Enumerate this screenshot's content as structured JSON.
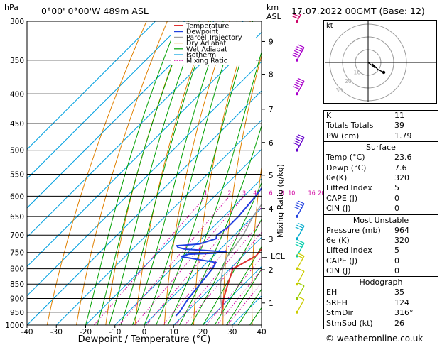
{
  "header": {
    "location": "0°00' 0°00'W 489m ASL",
    "datetime": "17.07.2022 00GMT (Base: 12)",
    "hpa_label": "hPa",
    "km_label": "km",
    "asl_label": "ASL"
  },
  "legend": [
    "Temperature",
    "Dewpoint",
    "Parcel Trajectory",
    "Dry Adiabat",
    "Wet Adiabat",
    "Isotherm",
    "Mixing Ratio"
  ],
  "colors": {
    "temperature": "#e03030",
    "dewpoint": "#2040e0",
    "parcel": "#a0a0a0",
    "dry_adiabat": "#e08000",
    "wet_adiabat": "#00a000",
    "isotherm": "#00a0e0",
    "mixing_ratio": "#d000a0"
  },
  "chart_data": {
    "type": "line",
    "title": "",
    "xlabel": "Dewpoint / Temperature (°C)",
    "ylabel": "",
    "y2label": "Mixing Ratio (g/kg)",
    "xlim": [
      -40,
      40
    ],
    "ylim": [
      300,
      1000
    ],
    "log_y": true,
    "x_ticks": [
      -40,
      -30,
      -20,
      -10,
      0,
      10,
      20,
      30,
      40
    ],
    "pressure_ticks": [
      300,
      350,
      400,
      450,
      500,
      550,
      600,
      650,
      700,
      750,
      800,
      850,
      900,
      950,
      1000
    ],
    "km_ticks": [
      {
        "km": "1",
        "p": 916
      },
      {
        "km": "2",
        "p": 803
      },
      {
        "km": "3",
        "p": 712
      },
      {
        "km": "4",
        "p": 630
      },
      {
        "km": "5",
        "p": 552
      },
      {
        "km": "6",
        "p": 485
      },
      {
        "km": "7",
        "p": 425
      },
      {
        "km": "8",
        "p": 370
      },
      {
        "km": "9",
        "p": 325
      }
    ],
    "lcl": {
      "label": "LCL",
      "p": 765
    },
    "mixing_ratio_labels": [
      "1",
      "2",
      "3",
      "4",
      "6",
      "8",
      "10",
      "16",
      "20",
      "25"
    ],
    "mixing_ratio_values": [
      1,
      2,
      3,
      4,
      6,
      8,
      10,
      16,
      20,
      25
    ],
    "series": [
      {
        "name": "Temperature",
        "points": [
          [
            23.6,
            964
          ],
          [
            22,
            950
          ],
          [
            18,
            900
          ],
          [
            14.5,
            850
          ],
          [
            11,
            800
          ],
          [
            14.5,
            760
          ],
          [
            14,
            740
          ],
          [
            14,
            700
          ],
          [
            12,
            650
          ],
          [
            8.5,
            600
          ],
          [
            4.5,
            550
          ],
          [
            2,
            500
          ],
          [
            -1,
            450
          ],
          [
            -6,
            400
          ],
          [
            -8.5,
            370
          ],
          [
            -11,
            340
          ],
          [
            -16,
            300
          ]
        ]
      },
      {
        "name": "Dewpoint",
        "points": [
          [
            7.6,
            964
          ],
          [
            7.5,
            950
          ],
          [
            6,
            900
          ],
          [
            5,
            850
          ],
          [
            4,
            800
          ],
          [
            3,
            780
          ],
          [
            -11,
            762
          ],
          [
            -9,
            755
          ],
          [
            -1,
            752
          ],
          [
            3,
            748
          ],
          [
            -12,
            740
          ],
          [
            -15,
            735
          ],
          [
            -16,
            730
          ],
          [
            -9,
            725
          ],
          [
            -5,
            710
          ],
          [
            -6,
            700
          ],
          [
            -5,
            680
          ],
          [
            -5,
            650
          ],
          [
            -6,
            600
          ],
          [
            -8,
            550
          ],
          [
            -10,
            520
          ],
          [
            -17,
            490
          ],
          [
            -16,
            400
          ],
          [
            -24,
            360
          ],
          [
            -26,
            330
          ],
          [
            -31,
            315
          ],
          [
            -23,
            300
          ]
        ]
      },
      {
        "name": "Parcel Trajectory",
        "points": [
          [
            23.6,
            964
          ],
          [
            17,
            900
          ],
          [
            12,
            850
          ],
          [
            7.5,
            800
          ],
          [
            5,
            765
          ],
          [
            3,
            700
          ],
          [
            0,
            650
          ],
          [
            -2,
            600
          ],
          [
            -5,
            550
          ],
          [
            -7,
            500
          ],
          [
            -10,
            450
          ],
          [
            -14,
            400
          ],
          [
            -18,
            350
          ],
          [
            -22,
            300
          ]
        ]
      }
    ]
  },
  "wind_barbs": [
    {
      "p": 300,
      "speed": 60,
      "color": "#cc0066"
    },
    {
      "p": 350,
      "speed": 55,
      "color": "#aa00cc"
    },
    {
      "p": 400,
      "speed": 50,
      "color": "#aa00cc"
    },
    {
      "p": 500,
      "speed": 45,
      "color": "#6600cc"
    },
    {
      "p": 650,
      "speed": 35,
      "color": "#2040e0"
    },
    {
      "p": 710,
      "speed": 30,
      "color": "#00aacc"
    },
    {
      "p": 760,
      "speed": 25,
      "color": "#00ccaa"
    },
    {
      "p": 800,
      "speed": 15,
      "color": "#cccc00"
    },
    {
      "p": 850,
      "speed": 10,
      "color": "#cccc00"
    },
    {
      "p": 900,
      "speed": 10,
      "color": "#99cc00"
    },
    {
      "p": 950,
      "speed": 10,
      "color": "#cccc00"
    }
  ],
  "hodograph": {
    "label": "kt",
    "ring_labels": [
      "10",
      "20",
      "30"
    ]
  },
  "indices": [
    {
      "label": "K",
      "value": "11"
    },
    {
      "label": "Totals Totals",
      "value": "39"
    },
    {
      "label": "PW (cm)",
      "value": "1.79"
    }
  ],
  "surface": {
    "title": "Surface",
    "rows": [
      {
        "label": "Temp (°C)",
        "value": "23.6"
      },
      {
        "label": "Dewp (°C)",
        "value": "7.6"
      },
      {
        "label": "θe(K)",
        "value": "320"
      },
      {
        "label": "Lifted Index",
        "value": "5"
      },
      {
        "label": "CAPE (J)",
        "value": "0"
      },
      {
        "label": "CIN (J)",
        "value": "0"
      }
    ]
  },
  "most_unstable": {
    "title": "Most Unstable",
    "rows": [
      {
        "label": "Pressure (mb)",
        "value": "964"
      },
      {
        "label": "θe (K)",
        "value": "320"
      },
      {
        "label": "Lifted Index",
        "value": "5"
      },
      {
        "label": "CAPE (J)",
        "value": "0"
      },
      {
        "label": "CIN (J)",
        "value": "0"
      }
    ]
  },
  "hodograph_table": {
    "title": "Hodograph",
    "rows": [
      {
        "label": "EH",
        "value": "35"
      },
      {
        "label": "SREH",
        "value": "124"
      },
      {
        "label": "StmDir",
        "value": "316°"
      },
      {
        "label": "StmSpd (kt)",
        "value": "26"
      }
    ]
  },
  "copyright": "© weatheronline.co.uk"
}
